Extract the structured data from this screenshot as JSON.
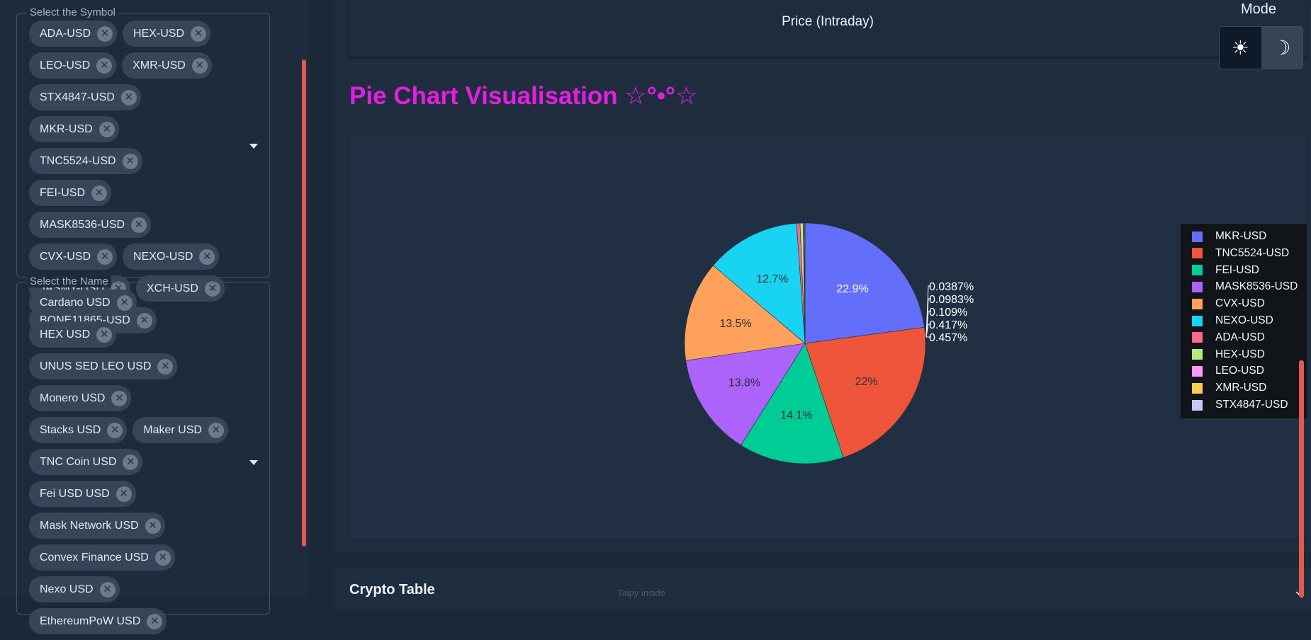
{
  "sidebar": {
    "symbol_label": "Select the Symbol",
    "symbols": [
      "ADA-USD",
      "HEX-USD",
      "LEO-USD",
      "XMR-USD",
      "STX4847-USD",
      "MKR-USD",
      "TNC5524-USD",
      "FEI-USD",
      "MASK8536-USD",
      "CVX-USD",
      "NEXO-USD",
      "JASMY-USD",
      "XCH-USD",
      "BONE11865-USD"
    ],
    "name_label": "Select the Name",
    "names": [
      "Cardano USD",
      "HEX USD",
      "UNUS SED LEO USD",
      "Monero USD",
      "Stacks USD",
      "Maker USD",
      "TNC Coin USD",
      "Fei USD USD",
      "Mask Network USD",
      "Convex Finance USD",
      "Nexo USD",
      "EthereumPoW USD"
    ],
    "remove_glyph": "✕"
  },
  "header": {
    "price_title": "Price (Intraday)",
    "mode_label": "Mode",
    "sun_glyph": "☀",
    "moon_glyph": "☽"
  },
  "pie_heading": "Pie Chart Visualisation ☆°•°☆",
  "chart_data": {
    "type": "pie",
    "labels": [
      "MKR-USD",
      "TNC5524-USD",
      "FEI-USD",
      "MASK8536-USD",
      "CVX-USD",
      "NEXO-USD",
      "ADA-USD",
      "HEX-USD",
      "LEO-USD",
      "XMR-USD",
      "STX4847-USD"
    ],
    "values": [
      22.9,
      22,
      14.1,
      13.8,
      13.5,
      12.7,
      0.457,
      0.417,
      0.109,
      0.0983,
      0.0387
    ],
    "value_labels": [
      "22.9%",
      "22%",
      "14.1%",
      "13.8%",
      "13.5%",
      "12.7%",
      "0.457%",
      "0.417%",
      "0.109%",
      "0.0983%",
      "0.0387%"
    ],
    "colors": [
      "#636efa",
      "#ef553b",
      "#00cc96",
      "#ab63fa",
      "#ffa15a",
      "#19d3f3",
      "#ff6692",
      "#b6e880",
      "#ff97ff",
      "#fecb52",
      "#c3c8f7"
    ],
    "legend_position": "right"
  },
  "table": {
    "title": "Crypto Table",
    "hint": "Taipy inside",
    "chevron": "⌄"
  }
}
